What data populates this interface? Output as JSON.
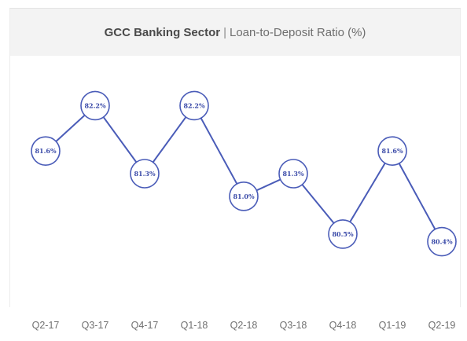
{
  "chart_data": {
    "type": "line",
    "title": "GCC Banking Sector",
    "subtitle": "Loan-to-Deposit Ratio (%)",
    "title_separator": "|",
    "categories": [
      "Q2-17",
      "Q3-17",
      "Q4-17",
      "Q1-18",
      "Q2-18",
      "Q3-18",
      "Q4-18",
      "Q1-19",
      "Q2-19"
    ],
    "series": [
      {
        "values": [
          81.6,
          82.2,
          81.3,
          82.2,
          81.0,
          81.3,
          80.5,
          81.6,
          80.4
        ],
        "data_labels": [
          "81.6%",
          "82.2%",
          "81.3%",
          "82.2%",
          "81.0%",
          "81.3%",
          "80.5%",
          "81.6%",
          "80.4%"
        ]
      }
    ],
    "ylim": [
      80.0,
      82.6
    ],
    "grid": false,
    "legend": "none",
    "colors": {
      "line": "#4a5cb8",
      "marker_fill": "#ffffff",
      "label": "#3a4aa8",
      "title_bg": "#f3f3f3"
    }
  }
}
